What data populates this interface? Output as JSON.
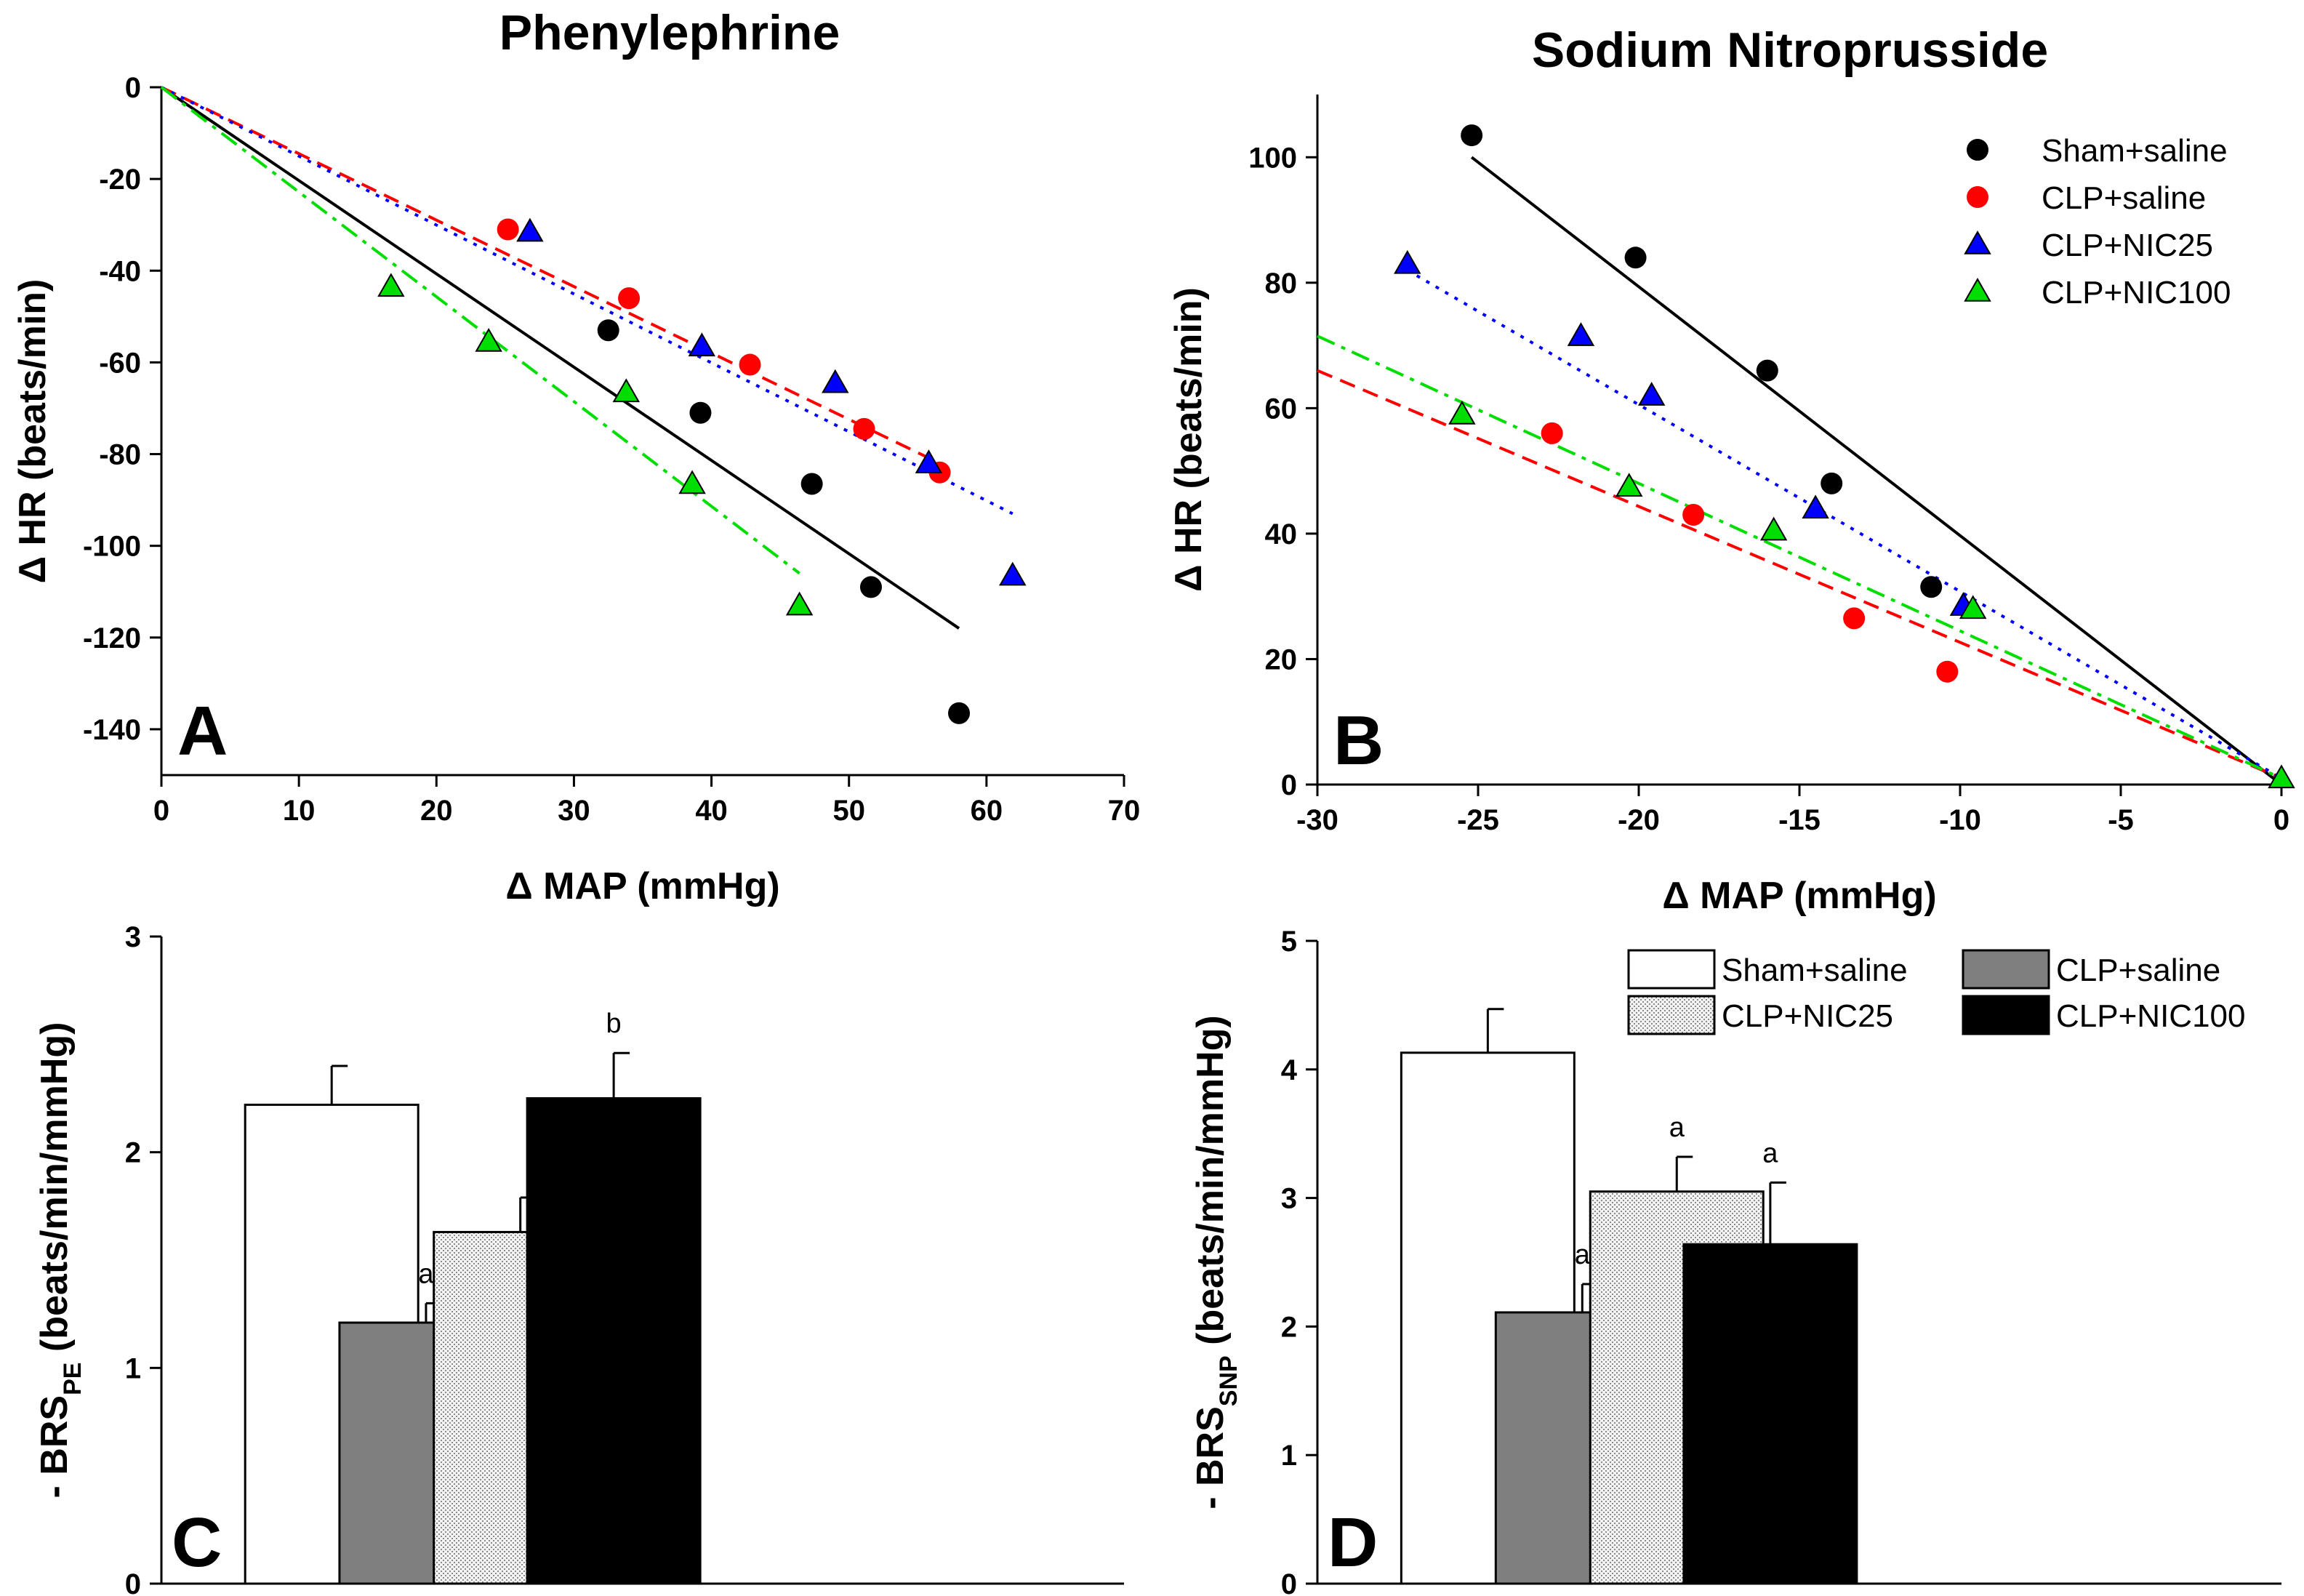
{
  "colors": {
    "Sham+saline": "#000000",
    "CLP+saline": "#ff0000",
    "CLP+NIC25": "#0000ff",
    "CLP+NIC100": "#00dd00",
    "bar_gray": "#7f7f7f"
  },
  "chart_data": [
    {
      "id": "A",
      "type": "scatter",
      "panel_label": "A",
      "title": "Phenylephrine",
      "xlabel": "Δ MAP (mmHg)",
      "ylabel": "Δ HR (beats/min)",
      "xlim": [
        0,
        70
      ],
      "ylim": [
        -150,
        0
      ],
      "xticks": [
        0,
        10,
        20,
        30,
        40,
        50,
        60,
        70
      ],
      "yticks": [
        0,
        -20,
        -40,
        -60,
        -80,
        -100,
        -120,
        -140
      ],
      "series": [
        {
          "name": "Sham+saline",
          "marker": "circle",
          "line": "solid",
          "x": [
            32.5,
            39.2,
            47.3,
            51.6,
            58.0
          ],
          "y": [
            -53,
            -71,
            -86.5,
            -109,
            -136.5
          ],
          "fit": {
            "x": [
              0,
              58
            ],
            "y": [
              0,
              -118
            ]
          }
        },
        {
          "name": "CLP+saline",
          "marker": "circle",
          "line": "dashed",
          "x": [
            25.2,
            34.0,
            42.8,
            51.1,
            56.6
          ],
          "y": [
            -31,
            -46,
            -60.5,
            -74.5,
            -84
          ],
          "fit": {
            "x": [
              0,
              56.6
            ],
            "y": [
              0,
              -82
            ]
          }
        },
        {
          "name": "CLP+NIC25",
          "marker": "triangle",
          "line": "dotted",
          "x": [
            26.8,
            39.3,
            49.0,
            55.8,
            61.9
          ],
          "y": [
            -31.5,
            -56.5,
            -64.5,
            -82,
            -106.5
          ],
          "fit": {
            "x": [
              0,
              61.9
            ],
            "y": [
              0,
              -93
            ]
          }
        },
        {
          "name": "CLP+NIC100",
          "marker": "triangle",
          "line": "dashdot",
          "x": [
            16.7,
            23.8,
            33.8,
            38.6,
            46.4
          ],
          "y": [
            -43.5,
            -55.5,
            -66.5,
            -86.5,
            -113
          ],
          "fit": {
            "x": [
              0,
              46.4
            ],
            "y": [
              0,
              -106
            ]
          }
        }
      ]
    },
    {
      "id": "B",
      "type": "scatter",
      "panel_label": "B",
      "title": "Sodium Nitroprusside",
      "xlabel": "Δ MAP (mmHg)",
      "ylabel": "Δ HR (beats/min)",
      "xlim": [
        -30,
        0
      ],
      "ylim": [
        0,
        110
      ],
      "xticks": [
        -30,
        -25,
        -20,
        -15,
        -10,
        -5,
        0
      ],
      "yticks": [
        0,
        20,
        40,
        60,
        80,
        100
      ],
      "legend": [
        "Sham+saline",
        "CLP+saline",
        "CLP+NIC25",
        "CLP+NIC100"
      ],
      "legend_position": "top-right",
      "series": [
        {
          "name": "Sham+saline",
          "marker": "circle",
          "line": "solid",
          "x": [
            -25.2,
            -20.1,
            -16.0,
            -14.0,
            -10.9
          ],
          "y": [
            103.5,
            84,
            66,
            48,
            31.5
          ],
          "fit": {
            "x": [
              -25.2,
              0
            ],
            "y": [
              100,
              0
            ]
          }
        },
        {
          "name": "CLP+saline",
          "marker": "circle",
          "line": "dashed",
          "x": [
            -22.7,
            -18.3,
            -13.3,
            -10.4
          ],
          "y": [
            56,
            43,
            26.5,
            18
          ],
          "fit": {
            "x": [
              -30,
              0
            ],
            "y": [
              66,
              1
            ]
          }
        },
        {
          "name": "CLP+NIC25",
          "marker": "triangle",
          "line": "dotted",
          "x": [
            -27.2,
            -21.8,
            -19.6,
            -14.5,
            -9.9
          ],
          "y": [
            83,
            71.5,
            62,
            44,
            28.5
          ],
          "fit": {
            "x": [
              -27.2,
              0
            ],
            "y": [
              82,
              1
            ]
          }
        },
        {
          "name": "CLP+NIC100",
          "marker": "triangle",
          "line": "dashdot",
          "x": [
            -25.5,
            -20.3,
            -15.8,
            -9.6,
            0
          ],
          "y": [
            59,
            47.5,
            40.5,
            28,
            1
          ],
          "fit": {
            "x": [
              -30,
              0
            ],
            "y": [
              71.5,
              1
            ]
          }
        }
      ]
    },
    {
      "id": "C",
      "type": "bar",
      "panel_label": "C",
      "ylabel": "- BRS",
      "ylabel_sub": "PE",
      "ylabel_suffix": " (beats/min/mmHg)",
      "ylim": [
        0,
        3
      ],
      "yticks": [
        0,
        1,
        2,
        3
      ],
      "categories": [
        "Sham+saline",
        "CLP+saline",
        "CLP+NIC25",
        "CLP+NIC100"
      ],
      "values": [
        2.22,
        1.21,
        1.63,
        2.25
      ],
      "errors": [
        0.18,
        0.09,
        0.16,
        0.21
      ],
      "annotations": [
        "",
        "a",
        "",
        "b"
      ]
    },
    {
      "id": "D",
      "type": "bar",
      "panel_label": "D",
      "ylabel": "- BRS",
      "ylabel_sub": "SNP",
      "ylabel_suffix": " (beats/min/mmHg)",
      "ylim": [
        0,
        5
      ],
      "yticks": [
        0,
        1,
        2,
        3,
        4,
        5
      ],
      "categories": [
        "Sham+saline",
        "CLP+saline",
        "CLP+NIC25",
        "CLP+NIC100"
      ],
      "values": [
        4.13,
        2.11,
        3.05,
        2.64
      ],
      "errors": [
        0.34,
        0.22,
        0.27,
        0.48
      ],
      "annotations": [
        "",
        "a",
        "a",
        "a"
      ],
      "legend": [
        "Sham+saline",
        "CLP+saline",
        "CLP+NIC25",
        "CLP+NIC100"
      ],
      "legend_position": "top-right"
    }
  ]
}
